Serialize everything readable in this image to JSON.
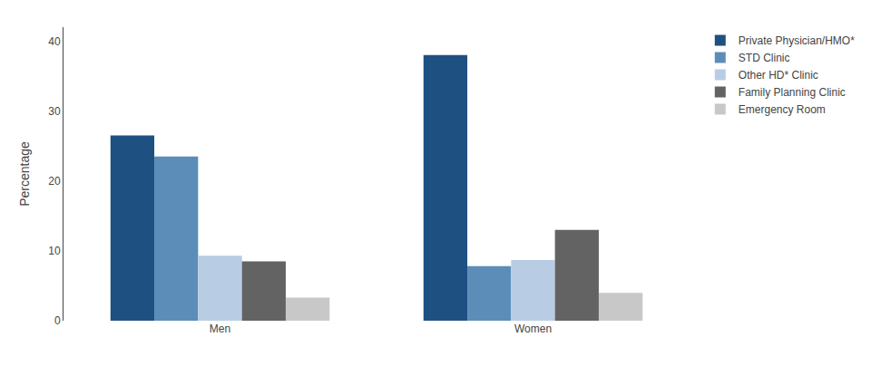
{
  "chart_data": {
    "type": "bar",
    "categories": [
      "Men",
      "Women"
    ],
    "series": [
      {
        "name": "Private Physician/HMO*",
        "color": "#1F5082",
        "values": [
          26.5,
          38.0
        ]
      },
      {
        "name": "STD Clinic",
        "color": "#5B8DB8",
        "values": [
          23.5,
          7.8
        ]
      },
      {
        "name": "Other HD* Clinic",
        "color": "#B8CCE4",
        "values": [
          9.3,
          8.7
        ]
      },
      {
        "name": "Family Planning Clinic",
        "color": "#636363",
        "values": [
          8.5,
          13.0
        ]
      },
      {
        "name": "Emergency Room",
        "color": "#C8C8C8",
        "values": [
          3.3,
          4.0
        ]
      }
    ],
    "ylabel": "Percentage",
    "ylim": [
      0,
      42
    ],
    "yticks": [
      0,
      10,
      20,
      30,
      40
    ],
    "grid": false,
    "legend": "upper right"
  }
}
